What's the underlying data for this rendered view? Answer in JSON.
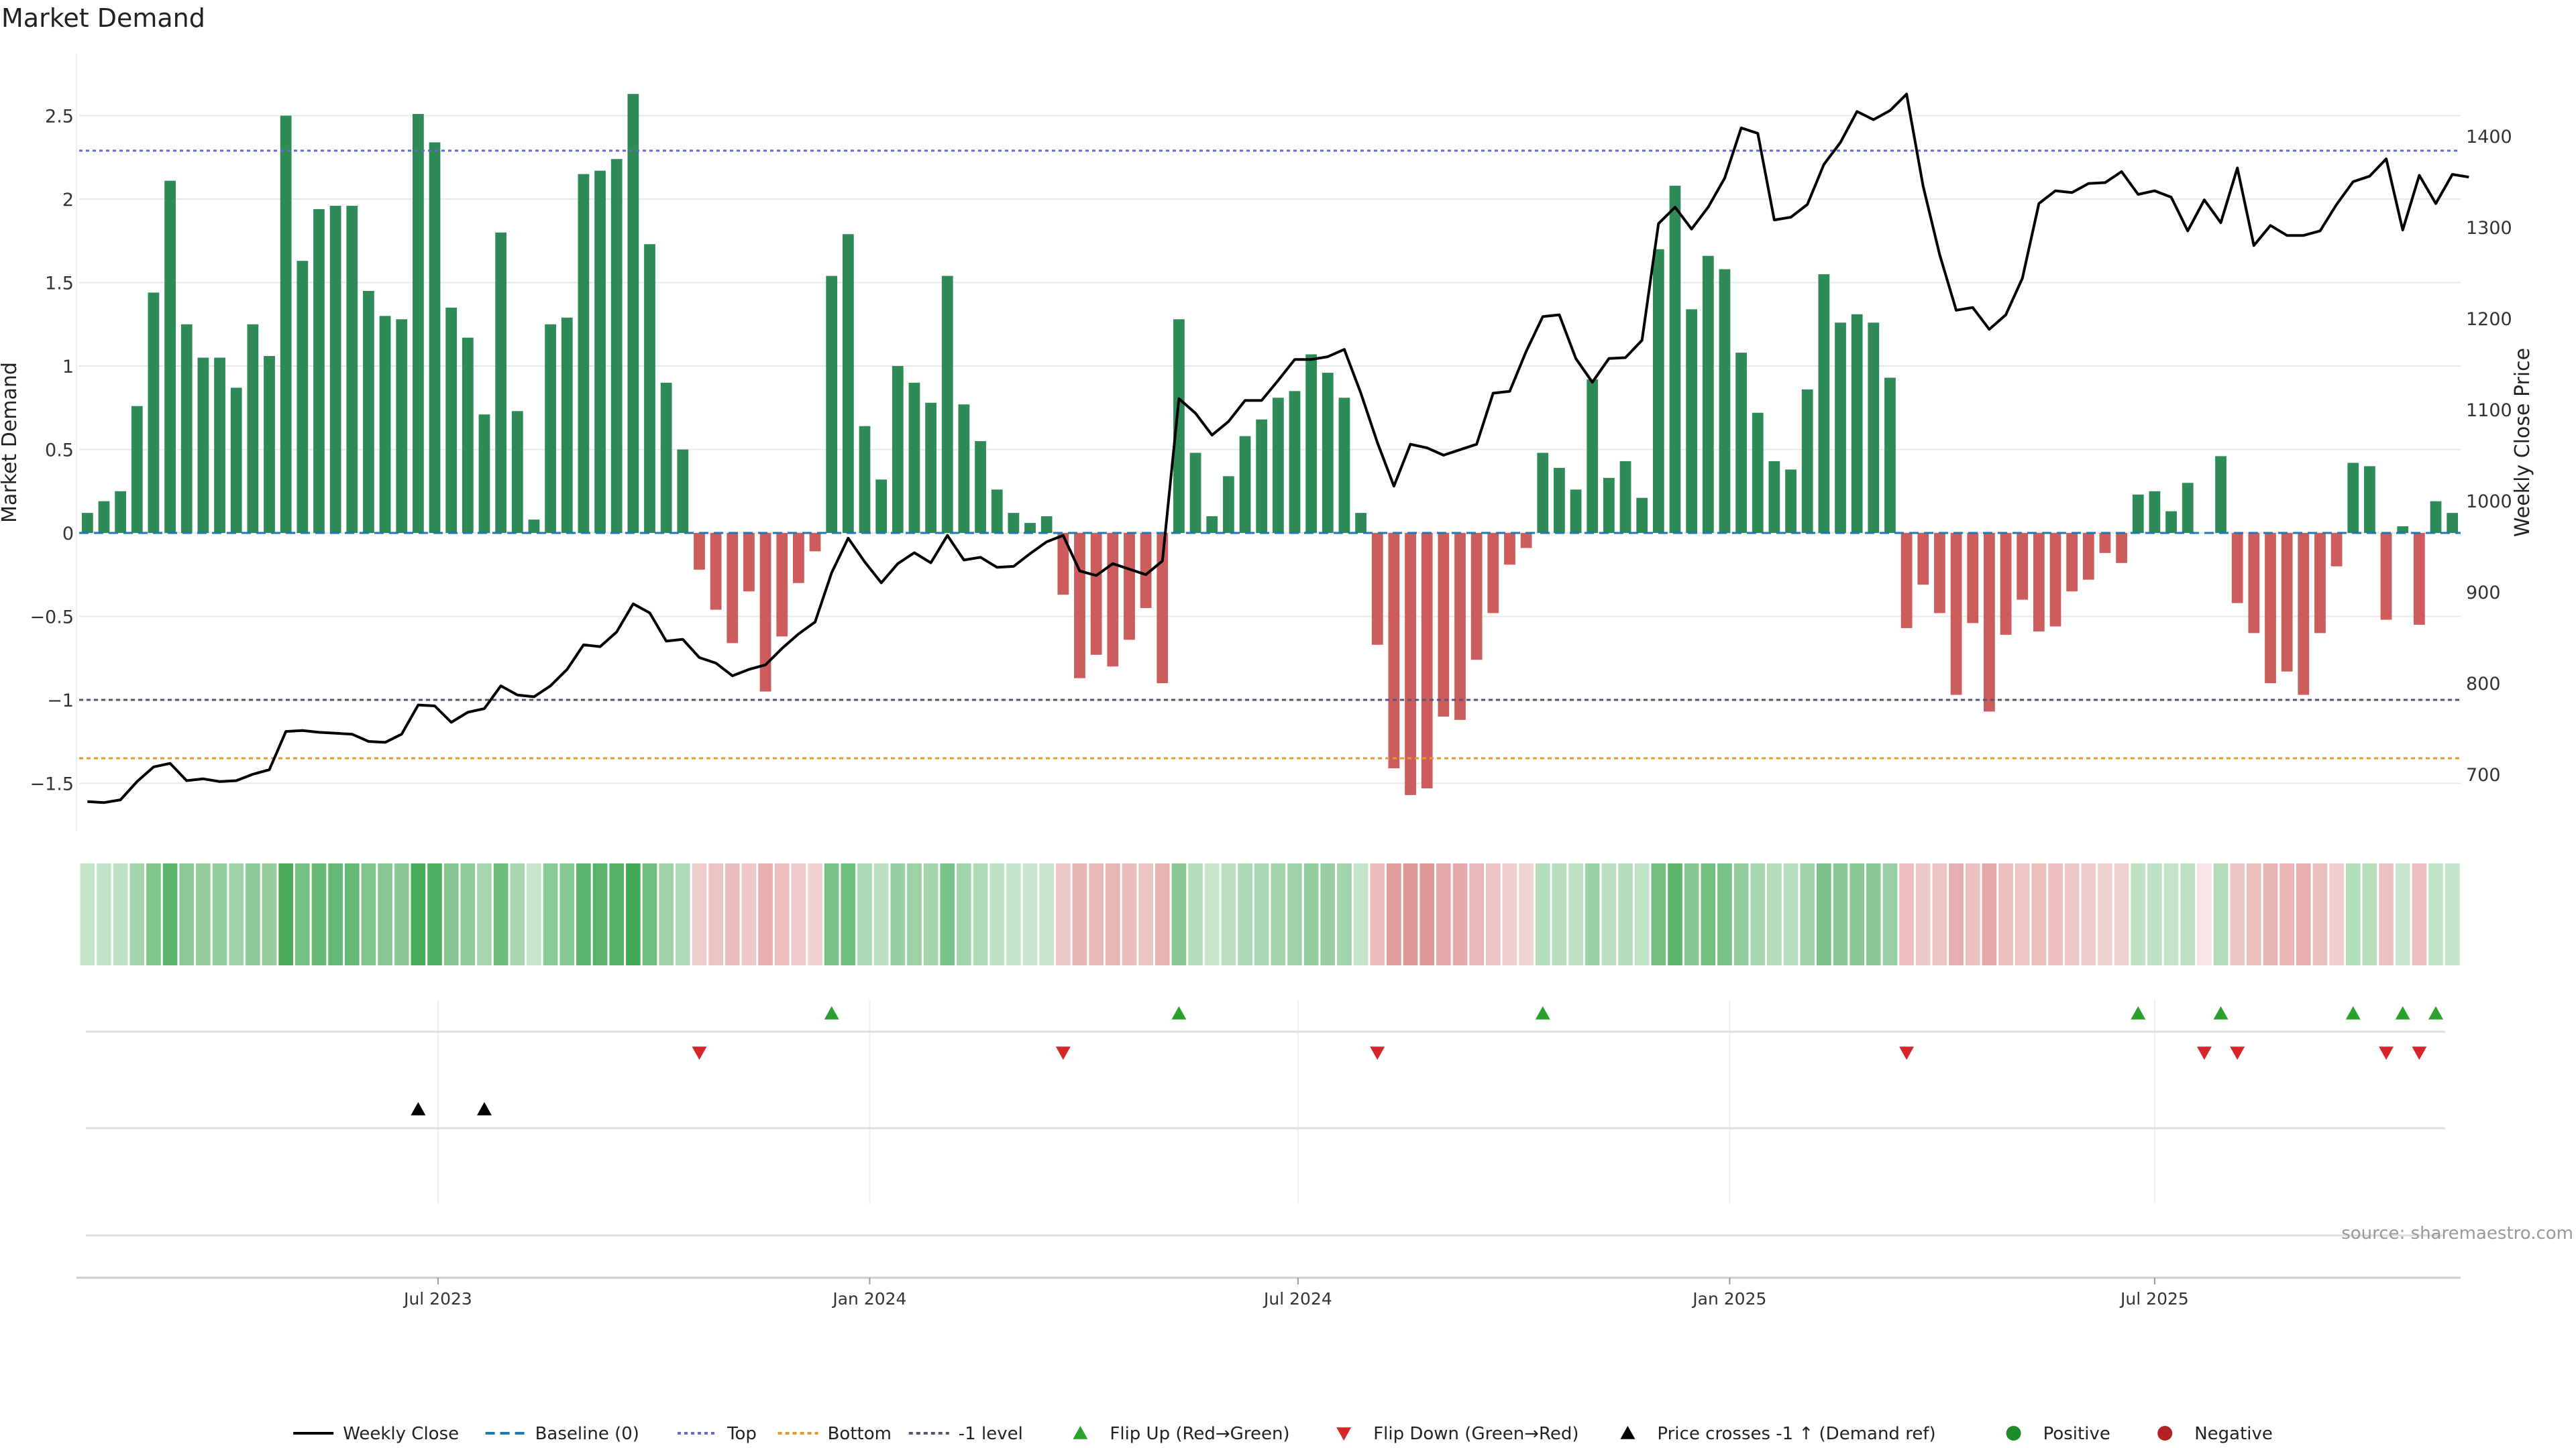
{
  "chart_data": {
    "type": "bar",
    "title": "Market Demand",
    "ylabel_left": "Market Demand",
    "ylabel_right": "Weekly Close Price",
    "ylim_left": [
      -1.8,
      2.9
    ],
    "ylim_right": [
      640,
      1500
    ],
    "yticks_left": [
      "2.5",
      "2",
      "1.5",
      "1",
      "0.5",
      "0",
      "−0.5",
      "−1",
      "−1.5"
    ],
    "yticks_left_values": [
      2.5,
      2,
      1.5,
      1,
      0.5,
      0,
      -0.5,
      -1,
      -1.5
    ],
    "yticks_right": [
      "1400",
      "1300",
      "1200",
      "1100",
      "1000",
      "900",
      "800",
      "700"
    ],
    "yticks_right_values": [
      1400,
      1300,
      1200,
      1100,
      1000,
      900,
      800,
      700
    ],
    "xticks": [
      "Jul 2023",
      "Jan 2024",
      "Jul 2024",
      "Jan 2025",
      "Jul 2025"
    ],
    "xtick_week_index": [
      21.7,
      47.8,
      73.7,
      99.8,
      125.5
    ],
    "levels": {
      "top": 2.29,
      "bottom": -1.35,
      "minus_one": -1.0,
      "baseline": 0
    },
    "demand": [
      0.12,
      0.19,
      0.25,
      0.76,
      1.44,
      2.11,
      1.25,
      1.05,
      1.05,
      0.87,
      1.25,
      1.06,
      2.5,
      1.63,
      1.94,
      1.96,
      1.96,
      1.45,
      1.3,
      1.28,
      2.51,
      2.34,
      1.35,
      1.17,
      0.71,
      1.8,
      0.73,
      0.08,
      1.25,
      1.29,
      2.15,
      2.17,
      2.24,
      2.63,
      1.73,
      0.9,
      0.5,
      -0.22,
      -0.46,
      -0.66,
      -0.35,
      -0.95,
      -0.62,
      -0.3,
      -0.11,
      1.54,
      1.79,
      0.64,
      0.32,
      1.0,
      0.9,
      0.78,
      1.54,
      0.77,
      0.55,
      0.26,
      0.12,
      0.06,
      0.1,
      -0.37,
      -0.87,
      -0.73,
      -0.8,
      -0.64,
      -0.45,
      -0.9,
      1.28,
      0.48,
      0.1,
      0.34,
      0.58,
      0.68,
      0.81,
      0.85,
      1.07,
      0.96,
      0.81,
      0.12,
      -0.67,
      -1.41,
      -1.57,
      -1.53,
      -1.1,
      -1.12,
      -0.76,
      -0.48,
      -0.19,
      -0.09,
      0.48,
      0.39,
      0.26,
      0.92,
      0.33,
      0.43,
      0.21,
      1.7,
      2.08,
      1.34,
      1.66,
      1.58,
      1.08,
      0.72,
      0.43,
      0.38,
      0.86,
      1.55,
      1.26,
      1.31,
      1.26,
      0.93,
      -0.57,
      -0.31,
      -0.48,
      -0.97,
      -0.54,
      -1.07,
      -0.61,
      -0.4,
      -0.59,
      -0.56,
      -0.35,
      -0.28,
      -0.12,
      -0.18,
      0.23,
      0.25,
      0.13,
      0.3,
      0,
      0.46,
      -0.42,
      -0.6,
      -0.9,
      -0.83,
      -0.97,
      -0.6,
      -0.2,
      0.42,
      0.4,
      -0.52,
      0.04,
      -0.55,
      0.19,
      0.12
    ],
    "weekly_close": [
      670,
      669,
      672,
      692,
      708,
      712,
      693,
      695,
      692,
      693,
      700,
      705,
      747,
      748,
      746,
      745,
      744,
      736,
      735,
      744,
      776,
      775,
      757,
      768,
      772,
      797,
      787,
      785,
      797,
      815,
      842,
      840,
      856,
      887,
      877,
      846,
      848,
      828,
      822,
      808,
      815,
      820,
      838,
      854,
      867,
      921,
      959,
      933,
      910,
      931,
      943,
      932,
      962,
      935,
      938,
      927,
      928,
      942,
      955,
      962,
      923,
      918,
      931,
      925,
      919,
      934,
      1112,
      1096,
      1072,
      1087,
      1110,
      1110,
      1132,
      1155,
      1155,
      1158,
      1166,
      1118,
      1064,
      1016,
      1062,
      1058,
      1050,
      1056,
      1062,
      1118,
      1120,
      1164,
      1202,
      1204,
      1156,
      1130,
      1156,
      1157,
      1176,
      1304,
      1322,
      1298,
      1322,
      1354,
      1409,
      1403,
      1308,
      1311,
      1325,
      1369,
      1393,
      1427,
      1418,
      1428,
      1446,
      1345,
      1270,
      1209,
      1212,
      1188,
      1204,
      1244,
      1326,
      1340,
      1338,
      1348,
      1349,
      1361,
      1336,
      1340,
      1333,
      1296,
      1330,
      1305,
      1365,
      1280,
      1302,
      1291,
      1291,
      1296,
      1325,
      1350,
      1356,
      1375,
      1297,
      1357,
      1326,
      1358,
      1355
    ],
    "flip_up": [
      45,
      66,
      88,
      124,
      129,
      137,
      140,
      142
    ],
    "flip_down": [
      37,
      59,
      78,
      110,
      128,
      130,
      139,
      141
    ],
    "price_crosses": [
      20,
      24
    ],
    "legend": [
      "Weekly Close",
      "Baseline (0)",
      "Top",
      "Bottom",
      "-1 level",
      "Flip Up (Red→Green)",
      "Flip Down (Green→Red)",
      "Price crosses -1 ↑ (Demand ref)",
      "Positive",
      "Negative"
    ],
    "source": "source: sharemaestro.com"
  },
  "colors": {
    "positive": "#2e8b57",
    "negative": "#cd5c5c",
    "flip_up": "#2ca02c",
    "flip_down": "#d62728",
    "price": "#000000",
    "top": "#6a6ac8",
    "bottom": "#e39a2a",
    "minus_one": "#555577",
    "baseline": "#1f77b4"
  }
}
